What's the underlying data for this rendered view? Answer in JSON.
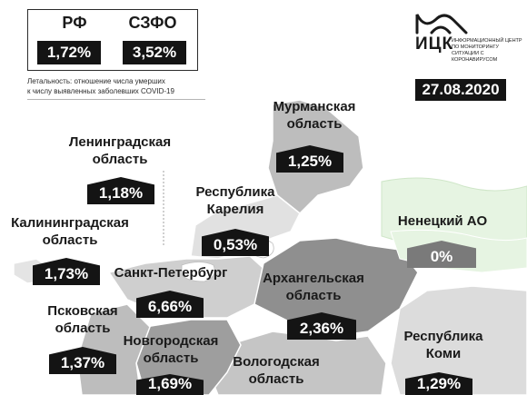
{
  "summary": {
    "rf_label": "РФ",
    "rf_value": "1,72%",
    "nwfd_label": "СЗФО",
    "nwfd_value": "3,52%",
    "note_line1": "Летальность: отношение числа умерших",
    "note_line2": "к числу выявленных заболевших COVID-19"
  },
  "logo": {
    "name": "ИЦК",
    "description": "Информационный центр по мониторингу ситуации с коронавирусом"
  },
  "date": "27.08.2020",
  "regions": [
    {
      "name_line1": "Мурманская",
      "name_line2": "область",
      "value": "1,25%",
      "style": "dark"
    },
    {
      "name_line1": "Ленинградская",
      "name_line2": "область",
      "value": "1,18%",
      "style": "dark"
    },
    {
      "name_line1": "Республика",
      "name_line2": "Карелия",
      "value": "0,53%",
      "style": "dark"
    },
    {
      "name_line1": "Ненецкий АО",
      "name_line2": "",
      "value": "0%",
      "style": "grey"
    },
    {
      "name_line1": "Калининградская",
      "name_line2": "область",
      "value": "1,73%",
      "style": "dark"
    },
    {
      "name_line1": "Санкт-Петербург",
      "name_line2": "",
      "value": "6,66%",
      "style": "dark"
    },
    {
      "name_line1": "Архангельская",
      "name_line2": "область",
      "value": "2,36%",
      "style": "dark"
    },
    {
      "name_line1": "Псковская",
      "name_line2": "область",
      "value": "1,37%",
      "style": "dark"
    },
    {
      "name_line1": "Новгородская",
      "name_line2": "область",
      "value": "1,69%",
      "style": "dark"
    },
    {
      "name_line1": "Вологодская",
      "name_line2": "область",
      "value": "",
      "style": "dark"
    },
    {
      "name_line1": "Республика",
      "name_line2": "Коми",
      "value": "1,29%",
      "style": "dark"
    }
  ],
  "colors": {
    "label_dark": "#141414",
    "label_grey": "#7a7a7a",
    "region_shade_light": "#dcdcdc",
    "region_shade_mid": "#bdbdbd",
    "region_shade_dark": "#8f8f8f",
    "outside_area": "#e6f4e2"
  }
}
